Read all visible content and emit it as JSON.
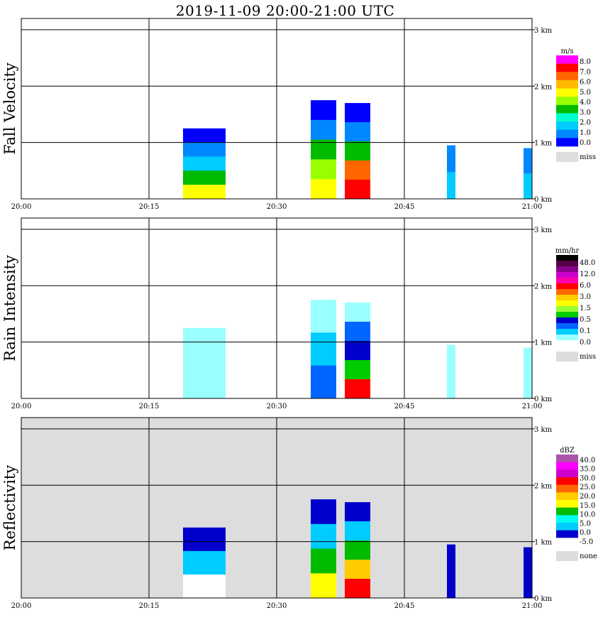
{
  "title": "2019-11-09   20:00-21:00 UTC",
  "x_tick_labels": [
    "20:00",
    "20:15",
    "20:30",
    "20:45",
    "21:00"
  ],
  "y_tick_labels": [
    "0 km",
    "1 km",
    "2 km",
    "3 km"
  ],
  "chart_data": [
    {
      "type": "heatmap",
      "ylabel": "Fall Velocity",
      "xlim": [
        "20:00",
        "21:00"
      ],
      "ylim_km": [
        0,
        3.2
      ],
      "grid": true,
      "background_color": "#ffffff",
      "colorbar": {
        "unit": "m/s",
        "labels": [
          "8.0",
          "7.0",
          "6.0",
          "5.0",
          "4.0",
          "3.0",
          "2.0",
          "1.0",
          "0.0"
        ],
        "colors": [
          "#ff00ff",
          "#ff0000",
          "#ff6600",
          "#ffbb00",
          "#ffff00",
          "#99ff00",
          "#00bb00",
          "#00ffcc",
          "#00ccff",
          "#0088ff",
          "#0000ff"
        ],
        "missing_label": "miss",
        "missing_color": "#dddddd"
      },
      "echoes": [
        {
          "time_start": "20:19",
          "time_end": "20:24",
          "top_km": 1.25,
          "colors": [
            "#0000ff",
            "#0088ff",
            "#00ccff",
            "#00bb00",
            "#ffff00"
          ]
        },
        {
          "time_start": "20:34",
          "time_end": "20:37",
          "top_km": 1.75,
          "colors": [
            "#0000ff",
            "#0088ff",
            "#00bb00",
            "#99ff00",
            "#ffff00"
          ]
        },
        {
          "time_start": "20:38",
          "time_end": "20:41",
          "top_km": 1.7,
          "colors": [
            "#0000ff",
            "#0088ff",
            "#00bb00",
            "#ff6600",
            "#ff0000"
          ]
        },
        {
          "time_start": "20:50",
          "time_end": "20:51",
          "top_km": 0.95,
          "colors": [
            "#0088ff",
            "#00ccff"
          ]
        },
        {
          "time_start": "20:59",
          "time_end": "21:00",
          "top_km": 0.9,
          "colors": [
            "#0088ff",
            "#00ccff"
          ]
        }
      ]
    },
    {
      "type": "heatmap",
      "ylabel": "Rain Intensity",
      "xlim": [
        "20:00",
        "21:00"
      ],
      "ylim_km": [
        0,
        3.2
      ],
      "grid": true,
      "background_color": "#ffffff",
      "colorbar": {
        "unit": "mm/hr",
        "labels": [
          "48.0",
          "12.0",
          "6.0",
          "3.0",
          "1.5",
          "0.5",
          "0.1",
          "0.0"
        ],
        "colors": [
          "#000000",
          "#550044",
          "#880088",
          "#cc00cc",
          "#ff00aa",
          "#ff0000",
          "#ff6600",
          "#ffcc00",
          "#ffff00",
          "#99ff33",
          "#00cc00",
          "#0000cc",
          "#0066ff",
          "#00ccff",
          "#99ffff",
          "#ffffff"
        ],
        "missing_label": "miss",
        "missing_color": "#dddddd"
      },
      "echoes": [
        {
          "time_start": "20:19",
          "time_end": "20:24",
          "top_km": 1.25,
          "colors": [
            "#99ffff"
          ]
        },
        {
          "time_start": "20:34",
          "time_end": "20:37",
          "top_km": 1.75,
          "colors": [
            "#99ffff",
            "#00ccff",
            "#0066ff"
          ]
        },
        {
          "time_start": "20:38",
          "time_end": "20:41",
          "top_km": 1.7,
          "colors": [
            "#99ffff",
            "#0066ff",
            "#0000cc",
            "#00cc00",
            "#ff0000"
          ]
        },
        {
          "time_start": "20:50",
          "time_end": "20:51",
          "top_km": 0.95,
          "colors": [
            "#99ffff"
          ]
        },
        {
          "time_start": "20:59",
          "time_end": "21:00",
          "top_km": 0.9,
          "colors": [
            "#99ffff"
          ]
        }
      ]
    },
    {
      "type": "heatmap",
      "ylabel": "Reflectivity",
      "xlim": [
        "20:00",
        "21:00"
      ],
      "ylim_km": [
        0,
        3.2
      ],
      "grid": true,
      "background_color": "#dddddd",
      "colorbar": {
        "unit": "dBZ",
        "labels": [
          "40.0",
          "35.0",
          "30.0",
          "25.0",
          "20.0",
          "15.0",
          "10.0",
          "5.0",
          "0.0",
          "-5.0"
        ],
        "colors": [
          "#aa55aa",
          "#ff00ff",
          "#cc00cc",
          "#ff0000",
          "#ff6600",
          "#ffcc00",
          "#ffff00",
          "#00bb00",
          "#00ffee",
          "#00ccff",
          "#0000cc",
          "#ffffff"
        ],
        "missing_label": "none",
        "missing_color": "#dddddd"
      },
      "echoes": [
        {
          "time_start": "20:19",
          "time_end": "20:24",
          "top_km": 1.25,
          "colors": [
            "#0000cc",
            "#00ccff",
            "#ffffff"
          ]
        },
        {
          "time_start": "20:34",
          "time_end": "20:37",
          "top_km": 1.75,
          "colors": [
            "#0000cc",
            "#00ccff",
            "#00bb00",
            "#ffff00"
          ]
        },
        {
          "time_start": "20:38",
          "time_end": "20:41",
          "top_km": 1.7,
          "colors": [
            "#0000cc",
            "#00ccff",
            "#00bb00",
            "#ffcc00",
            "#ff0000"
          ]
        },
        {
          "time_start": "20:50",
          "time_end": "20:51",
          "top_km": 0.95,
          "colors": [
            "#0000cc"
          ]
        },
        {
          "time_start": "20:59",
          "time_end": "21:00",
          "top_km": 0.9,
          "colors": [
            "#0000cc"
          ]
        }
      ]
    }
  ]
}
